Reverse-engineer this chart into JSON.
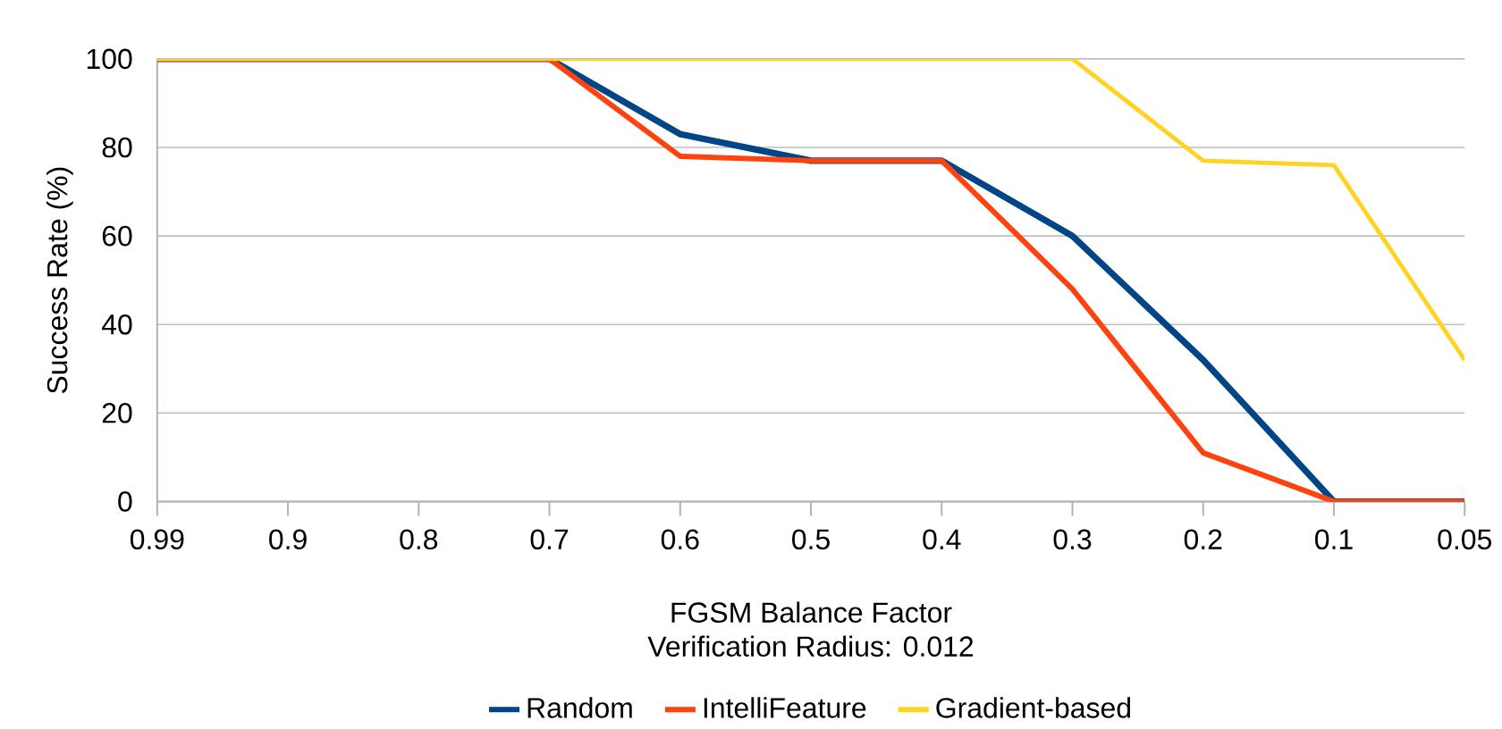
{
  "chart_data": {
    "type": "line",
    "xlabel": "FGSM Balance Factor",
    "ylabel": "Success Rate (%)",
    "annotations": [
      "Verification Radius: 0.012"
    ],
    "categories": [
      "0.99",
      "0.9",
      "0.8",
      "0.7",
      "0.6",
      "0.5",
      "0.4",
      "0.3",
      "0.2",
      "0.1",
      "0.05"
    ],
    "series": [
      {
        "name": "Random",
        "color": "#004586",
        "values": [
          100,
          100,
          100,
          100,
          83,
          77,
          77,
          60,
          32,
          0,
          0
        ]
      },
      {
        "name": "IntelliFeature",
        "color": "#ff420e",
        "values": [
          100,
          100,
          100,
          100,
          78,
          77,
          77,
          48,
          11,
          0,
          0
        ]
      },
      {
        "name": "Gradient-based",
        "color": "#ffd320",
        "values": [
          100,
          100,
          100,
          100,
          100,
          100,
          100,
          100,
          77,
          76,
          32
        ]
      }
    ],
    "ylim": [
      0,
      100
    ],
    "yticks": [
      0,
      20,
      40,
      60,
      80,
      100
    ],
    "grid": "y",
    "legend": "bottom",
    "marker": "none",
    "line_style": "solid"
  }
}
